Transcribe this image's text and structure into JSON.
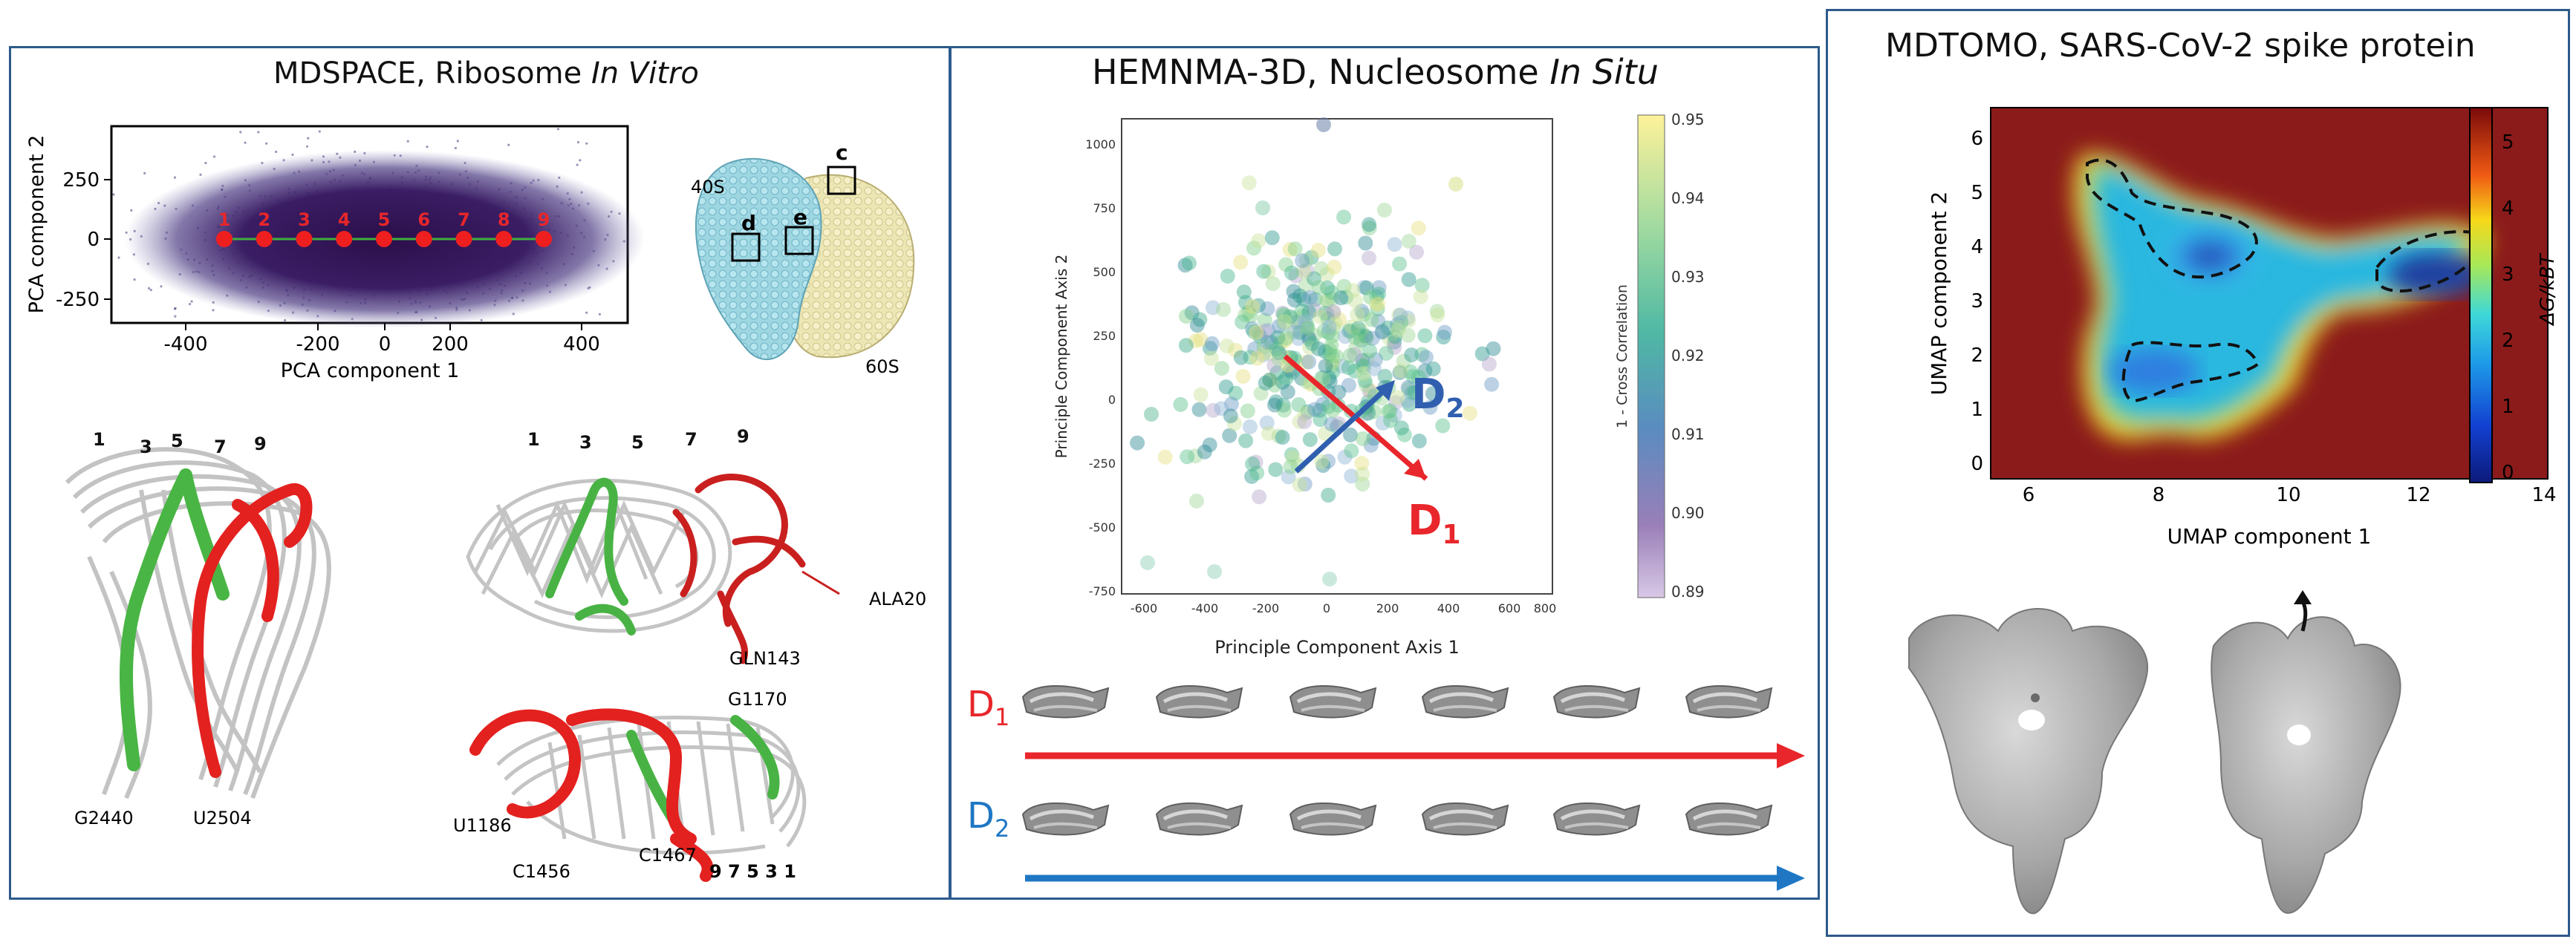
{
  "panel1": {
    "title_main": "MDSPACE, Ribosome ",
    "title_em": "In Vitro",
    "pca": {
      "xlabel": "PCA component 1",
      "ylabel": "PCA component 2",
      "xticks": [
        "-400",
        "-200",
        "0",
        "200",
        "400"
      ],
      "yticks": [
        "250",
        "0",
        "-250"
      ],
      "point_labels": [
        "1",
        "2",
        "3",
        "4",
        "5",
        "6",
        "7",
        "8",
        "9"
      ]
    },
    "ribosome": {
      "label_40s": "40S",
      "label_60s": "60S",
      "box_c": "c",
      "box_d": "d",
      "box_e": "e"
    },
    "struct_a": {
      "nums": [
        "1",
        "3",
        "5",
        "7",
        "9"
      ],
      "lbl_g2440": "G2440",
      "lbl_u2504": "U2504"
    },
    "struct_b": {
      "nums": [
        "1",
        "3",
        "5",
        "7",
        "9"
      ],
      "lbl_ala20": "ALA20",
      "lbl_gln143": "GLN143"
    },
    "struct_c": {
      "lbl_g1170": "G1170",
      "lbl_u1186": "U1186",
      "lbl_c1456": "C1456",
      "lbl_c1467": "C1467",
      "nums": "9 7 5 3 1"
    }
  },
  "panel2": {
    "title_main": "HEMNMA-3D, Nucleosome ",
    "title_em": "In Situ",
    "scatter": {
      "xlabel": "Principle Component Axis 1",
      "ylabel": "Principle Component Axis 2",
      "xticks": [
        "-600",
        "-400",
        "-200",
        "0",
        "200",
        "400",
        "600",
        "800"
      ],
      "yticks": [
        "1000",
        "750",
        "500",
        "250",
        "0",
        "-250",
        "-500",
        "-750"
      ],
      "cbar_label": "1 - Cross Correlation",
      "cbar_ticks": [
        "0.95",
        "0.94",
        "0.93",
        "0.92",
        "0.91",
        "0.90",
        "0.89"
      ],
      "d1_main": "D",
      "d1_sub": "1",
      "d2_main": "D",
      "d2_sub": "2"
    },
    "rows": {
      "d1_main": "D",
      "d1_sub": "1",
      "d2_main": "D",
      "d2_sub": "2"
    }
  },
  "panel3": {
    "title": "MDTOMO,  SARS-CoV-2 spike protein",
    "heatmap": {
      "xlabel": "UMAP component 1",
      "ylabel": "UMAP component 2",
      "xticks": [
        "6",
        "8",
        "10",
        "12",
        "14"
      ],
      "yticks": [
        "6",
        "5",
        "4",
        "3",
        "2",
        "1",
        "0"
      ],
      "cbar_label": "ΔG/kBT",
      "cbar_ticks": [
        "5",
        "4",
        "3",
        "2",
        "1",
        "0"
      ]
    }
  },
  "colors": {
    "frame": "#2e5a8c",
    "red": "#e8262b",
    "blue": "#1f77c4",
    "green": "#4caf3c",
    "purple": "#3b1f5e"
  }
}
